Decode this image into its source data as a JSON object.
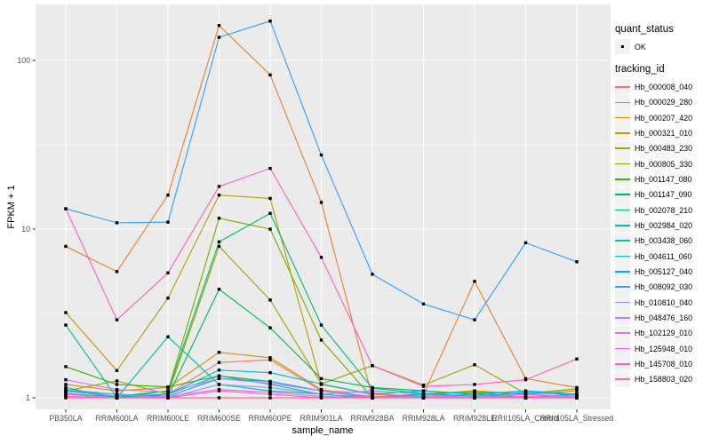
{
  "chart_data": {
    "type": "line",
    "title": "",
    "xlabel": "sample_name",
    "ylabel": "FPKM + 1",
    "y_scale": "log10",
    "y_ticks": [
      "1",
      "10",
      "100"
    ],
    "y_minor_ticks": [
      3.1623,
      31.623
    ],
    "ylim": [
      0.93,
      215
    ],
    "grid": true,
    "legend_position": "right",
    "panel_bg": "#EBEBEB",
    "grid_color": "#FFFFFF",
    "axis_text_color": "#4D4D4D",
    "point_color": "#000000",
    "point_shape": "square",
    "legend_key_bg": "#F2F2F2",
    "legend_quant": {
      "title": "quant_status",
      "entries": [
        "OK"
      ]
    },
    "legend_tracking": {
      "title": "tracking_id"
    },
    "categories": [
      "PB350LA",
      "RRIM600LA",
      "RRIM600LE",
      "RRIM600SE",
      "RRIM600PE",
      "RRIM901LA",
      "RRIM928BA",
      "RRIM928LA",
      "RRIM928LE",
      "RRII105LA_Control",
      "RRII105LA_Stressed"
    ],
    "series": [
      {
        "name": "Hb_000008_040",
        "color": "#F8766D",
        "values": [
          1.07,
          1.0,
          1.05,
          1.62,
          1.68,
          1.1,
          1.07,
          1.0,
          1.03,
          1.0,
          1.05
        ]
      },
      {
        "name": "Hb_000029_280",
        "color": "#EA8331",
        "values": [
          7.9,
          5.6,
          15.9,
          161,
          82,
          14.4,
          1.0,
          1.05,
          4.9,
          1.3,
          1.15
        ]
      },
      {
        "name": "Hb_000207_420",
        "color": "#D89000",
        "values": [
          1.2,
          1.1,
          1.15,
          1.86,
          1.73,
          1.12,
          1.0,
          1.05,
          1.1,
          1.05,
          1.1
        ]
      },
      {
        "name": "Hb_000321_010",
        "color": "#C09B00",
        "values": [
          3.2,
          1.45,
          3.9,
          15.9,
          15.2,
          1.2,
          1.05,
          1.0,
          1.05,
          1.0,
          1.05
        ]
      },
      {
        "name": "Hb_000483_230",
        "color": "#A3A500",
        "values": [
          1.1,
          1.26,
          1.05,
          7.9,
          3.8,
          1.21,
          1.55,
          1.19,
          1.57,
          1.06,
          1.13
        ]
      },
      {
        "name": "Hb_000805_330",
        "color": "#7CAE00",
        "values": [
          1.05,
          1.0,
          1.1,
          11.6,
          10.0,
          2.2,
          1.0,
          1.06,
          1.08,
          1.06,
          1.13
        ]
      },
      {
        "name": "Hb_001147_080",
        "color": "#39B600",
        "values": [
          1.53,
          1.2,
          1.16,
          1.35,
          1.25,
          1.1,
          1.0,
          1.05,
          1.08,
          1.0,
          1.05
        ]
      },
      {
        "name": "Hb_001147_090",
        "color": "#00BB4E",
        "values": [
          1.1,
          1.05,
          1.02,
          4.4,
          2.6,
          1.3,
          1.15,
          1.1,
          1.05,
          1.0,
          1.05
        ]
      },
      {
        "name": "Hb_002078_210",
        "color": "#00BF7D",
        "values": [
          1.05,
          1.02,
          1.1,
          8.4,
          12.4,
          2.7,
          1.14,
          1.06,
          1.02,
          1.05,
          1.0
        ]
      },
      {
        "name": "Hb_002984_020",
        "color": "#00C1A3",
        "values": [
          2.7,
          1.0,
          2.3,
          1.2,
          1.1,
          1.05,
          1.0,
          1.05,
          1.0,
          1.05,
          1.0
        ]
      },
      {
        "name": "Hb_003438_060",
        "color": "#00BFC4",
        "values": [
          1.15,
          1.0,
          1.05,
          1.35,
          1.2,
          1.05,
          1.0,
          1.02,
          1.05,
          1.0,
          1.02
        ]
      },
      {
        "name": "Hb_004611_060",
        "color": "#00BAE0",
        "values": [
          1.1,
          1.02,
          1.05,
          1.46,
          1.41,
          1.21,
          1.05,
          1.1,
          1.05,
          1.1,
          1.05
        ]
      },
      {
        "name": "Hb_005127_040",
        "color": "#00B0F6",
        "values": [
          1.05,
          1.0,
          1.02,
          1.3,
          1.25,
          1.1,
          1.0,
          1.05,
          1.02,
          1.08,
          1.04
        ]
      },
      {
        "name": "Hb_008092_030",
        "color": "#35A2FF",
        "values": [
          13.2,
          10.9,
          11.0,
          137,
          171,
          27.5,
          5.4,
          3.6,
          2.9,
          8.3,
          6.4
        ]
      },
      {
        "name": "Hb_010810_040",
        "color": "#9590FF",
        "values": [
          1.12,
          1.05,
          1.0,
          1.2,
          1.15,
          1.05,
          1.1,
          1.05,
          1.0,
          1.05,
          1.0
        ]
      },
      {
        "name": "Hb_048476_160",
        "color": "#C77CFF",
        "values": [
          1.28,
          1.12,
          1.08,
          1.3,
          1.22,
          1.1,
          1.02,
          1.0,
          1.03,
          1.0,
          1.02
        ]
      },
      {
        "name": "Hb_102129_010",
        "color": "#E76BF3",
        "values": [
          1.05,
          1.0,
          1.02,
          1.12,
          1.08,
          1.02,
          1.0,
          1.03,
          1.0,
          1.05,
          1.02
        ]
      },
      {
        "name": "Hb_125948_010",
        "color": "#FA62DB",
        "values": [
          1.02,
          1.0,
          1.0,
          1.1,
          1.05,
          1.0,
          1.02,
          1.0,
          1.0,
          1.02,
          1.0
        ]
      },
      {
        "name": "Hb_145708_010",
        "color": "#FF62BC",
        "values": [
          13.2,
          2.9,
          5.5,
          17.9,
          22.9,
          6.8,
          1.55,
          1.17,
          1.2,
          1.28,
          1.7
        ]
      },
      {
        "name": "Hb_158803_020",
        "color": "#FF6A98",
        "values": [
          1.0,
          1.0,
          1.0,
          1.0,
          1.0,
          1.0,
          1.0,
          1.0,
          1.0,
          1.0,
          1.0
        ]
      }
    ]
  }
}
